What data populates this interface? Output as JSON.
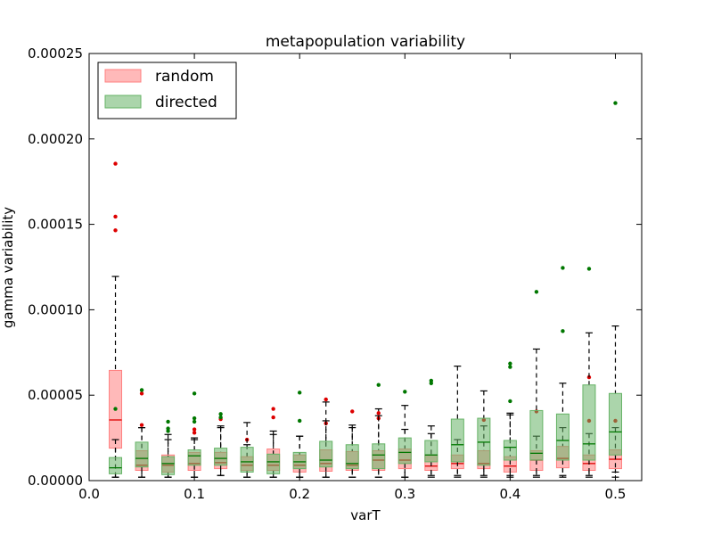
{
  "chart_data": {
    "type": "boxplot",
    "title": "metapopulation variability",
    "xlabel": "varT",
    "ylabel": "gamma variability",
    "xlim": [
      0.0,
      0.525
    ],
    "ylim": [
      0.0,
      0.00025
    ],
    "xticks": [
      0.0,
      0.1,
      0.2,
      0.3,
      0.4,
      0.5
    ],
    "xtick_labels": [
      "0.0",
      "0.1",
      "0.2",
      "0.3",
      "0.4",
      "0.5"
    ],
    "yticks": [
      0.0,
      5e-05,
      0.0001,
      0.00015,
      0.0002,
      0.00025
    ],
    "ytick_labels": [
      "0.00000",
      "0.00005",
      "0.00010",
      "0.00015",
      "0.00020",
      "0.00025"
    ],
    "legend_position": "top-left",
    "series": [
      {
        "name": "random",
        "fill": "#ff8080",
        "median_color": "#dd0000",
        "flier_color": "#dd0000",
        "boxes": [
          {
            "x": 0.025,
            "lw": 2e-06,
            "q1": 1.9e-05,
            "med": 3.55e-05,
            "q3": 6.45e-05,
            "uw": 0.0001195,
            "fliers": [
              0.0001855,
              0.0001545,
              0.0001465
            ]
          },
          {
            "x": 0.05,
            "lw": 2e-06,
            "q1": 6e-06,
            "med": 9e-06,
            "q3": 1.75e-05,
            "uw": 3.1e-05,
            "fliers": [
              5.1e-05,
              3.25e-05
            ]
          },
          {
            "x": 0.075,
            "lw": 2e-06,
            "q1": 5e-06,
            "med": 9e-06,
            "q3": 1.5e-05,
            "uw": 2.7e-05,
            "fliers": []
          },
          {
            "x": 0.1,
            "lw": 2e-06,
            "q1": 6e-06,
            "med": 1e-05,
            "q3": 1.65e-05,
            "uw": 2.5e-05,
            "fliers": [
              3e-05,
              2.8e-05
            ]
          },
          {
            "x": 0.125,
            "lw": 3e-06,
            "q1": 7e-06,
            "med": 1.05e-05,
            "q3": 1.65e-05,
            "uw": 3.1e-05,
            "fliers": [
              3.6e-05
            ]
          },
          {
            "x": 0.15,
            "lw": 2e-06,
            "q1": 6e-06,
            "med": 9e-06,
            "q3": 1.4e-05,
            "uw": 2.1e-05,
            "fliers": [
              2.4e-05
            ]
          },
          {
            "x": 0.175,
            "lw": 2e-06,
            "q1": 6e-06,
            "med": 9e-06,
            "q3": 1.85e-05,
            "uw": 2.9e-05,
            "fliers": [
              4.2e-05,
              3.7e-05
            ]
          },
          {
            "x": 0.2,
            "lw": 2e-06,
            "q1": 5e-06,
            "med": 9e-06,
            "q3": 1.5e-05,
            "uw": 2.6e-05,
            "fliers": []
          },
          {
            "x": 0.225,
            "lw": 2e-06,
            "q1": 5.5e-06,
            "med": 1e-05,
            "q3": 1.8e-05,
            "uw": 4.6e-05,
            "fliers": [
              4.75e-05,
              3.35e-05
            ]
          },
          {
            "x": 0.25,
            "lw": 2e-06,
            "q1": 6e-06,
            "med": 9e-06,
            "q3": 1.7e-05,
            "uw": 3.25e-05,
            "fliers": [
              4.05e-05
            ]
          },
          {
            "x": 0.275,
            "lw": 2e-06,
            "q1": 6e-06,
            "med": 1.2e-05,
            "q3": 1.75e-05,
            "uw": 4.2e-05,
            "fliers": [
              3.95e-05,
              3.65e-05
            ]
          },
          {
            "x": 0.3,
            "lw": 2e-06,
            "q1": 7e-06,
            "med": 1.2e-05,
            "q3": 1.85e-05,
            "uw": 3e-05,
            "fliers": []
          },
          {
            "x": 0.325,
            "lw": 2e-06,
            "q1": 6e-06,
            "med": 8.5e-06,
            "q3": 1.5e-05,
            "uw": 2.75e-05,
            "fliers": []
          },
          {
            "x": 0.35,
            "lw": 2e-06,
            "q1": 7e-06,
            "med": 1e-05,
            "q3": 1.5e-05,
            "uw": 2.4e-05,
            "fliers": []
          },
          {
            "x": 0.375,
            "lw": 2e-06,
            "q1": 7e-06,
            "med": 1e-05,
            "q3": 1.75e-05,
            "uw": 3.2e-05,
            "fliers": [
              3.55e-05
            ]
          },
          {
            "x": 0.4,
            "lw": 2e-06,
            "q1": 5e-06,
            "med": 8.5e-06,
            "q3": 1.4e-05,
            "uw": 3.85e-05,
            "fliers": []
          },
          {
            "x": 0.425,
            "lw": 2e-06,
            "q1": 6e-06,
            "med": 1.2e-05,
            "q3": 1.75e-05,
            "uw": 2.6e-05,
            "fliers": [
              4.05e-05
            ]
          },
          {
            "x": 0.45,
            "lw": 2e-06,
            "q1": 7.5e-06,
            "med": 1.3e-05,
            "q3": 2e-05,
            "uw": 3.1e-05,
            "fliers": []
          },
          {
            "x": 0.475,
            "lw": 2e-06,
            "q1": 6e-06,
            "med": 1e-05,
            "q3": 1.5e-05,
            "uw": 2.75e-05,
            "fliers": [
              6.05e-05,
              3.5e-05
            ]
          },
          {
            "x": 0.5,
            "lw": 2e-06,
            "q1": 7e-06,
            "med": 1.25e-05,
            "q3": 1.8e-05,
            "uw": 3.1e-05,
            "fliers": [
              3.5e-05
            ]
          }
        ]
      },
      {
        "name": "directed",
        "fill": "#66b366",
        "median_color": "#007700",
        "flier_color": "#007700",
        "boxes": [
          {
            "x": 0.025,
            "lw": 2e-06,
            "q1": 4e-06,
            "med": 7.5e-06,
            "q3": 1.35e-05,
            "uw": 2.4e-05,
            "fliers": [
              4.2e-05
            ]
          },
          {
            "x": 0.05,
            "lw": 2e-06,
            "q1": 8e-06,
            "med": 1.3e-05,
            "q3": 2.25e-05,
            "uw": 3.1e-05,
            "fliers": [
              5.3e-05
            ]
          },
          {
            "x": 0.075,
            "lw": 2e-06,
            "q1": 3.5e-06,
            "med": 1e-05,
            "q3": 1.4e-05,
            "uw": 2.4e-05,
            "fliers": [
              3.45e-05,
              3.05e-05,
              2.9e-05
            ]
          },
          {
            "x": 0.1,
            "lw": 2e-06,
            "q1": 9e-06,
            "med": 1.45e-05,
            "q3": 1.8e-05,
            "uw": 2.4e-05,
            "fliers": [
              5.1e-05,
              3.65e-05,
              3.45e-05
            ]
          },
          {
            "x": 0.125,
            "lw": 3e-06,
            "q1": 9e-06,
            "med": 1.3e-05,
            "q3": 1.9e-05,
            "uw": 3.2e-05,
            "fliers": [
              3.9e-05,
              3.7e-05
            ]
          },
          {
            "x": 0.15,
            "lw": 2e-06,
            "q1": 5e-06,
            "med": 1.1e-05,
            "q3": 1.95e-05,
            "uw": 3.4e-05,
            "fliers": []
          },
          {
            "x": 0.175,
            "lw": 2e-06,
            "q1": 4e-06,
            "med": 1.1e-05,
            "q3": 1.55e-05,
            "uw": 2.7e-05,
            "fliers": []
          },
          {
            "x": 0.2,
            "lw": 2e-06,
            "q1": 7e-06,
            "med": 1.1e-05,
            "q3": 1.65e-05,
            "uw": 2.6e-05,
            "fliers": [
              5.15e-05,
              3.5e-05
            ]
          },
          {
            "x": 0.225,
            "lw": 2e-06,
            "q1": 8e-06,
            "med": 1.2e-05,
            "q3": 2.3e-05,
            "uw": 3.5e-05,
            "fliers": []
          },
          {
            "x": 0.25,
            "lw": 2e-06,
            "q1": 7e-06,
            "med": 1e-05,
            "q3": 2.1e-05,
            "uw": 3.1e-05,
            "fliers": []
          },
          {
            "x": 0.275,
            "lw": 2e-06,
            "q1": 7e-06,
            "med": 1.5e-05,
            "q3": 2.15e-05,
            "uw": 3.8e-05,
            "fliers": [
              5.6e-05
            ]
          },
          {
            "x": 0.3,
            "lw": 2e-06,
            "q1": 1e-05,
            "med": 1.65e-05,
            "q3": 2.5e-05,
            "uw": 4.4e-05,
            "fliers": [
              5.2e-05
            ]
          },
          {
            "x": 0.325,
            "lw": 3e-06,
            "q1": 1.1e-05,
            "med": 1.5e-05,
            "q3": 2.35e-05,
            "uw": 3.2e-05,
            "fliers": [
              5.85e-05,
              5.7e-05
            ]
          },
          {
            "x": 0.35,
            "lw": 3e-06,
            "q1": 1.1e-05,
            "med": 2.1e-05,
            "q3": 3.6e-05,
            "uw": 6.7e-05,
            "fliers": []
          },
          {
            "x": 0.375,
            "lw": 3e-06,
            "q1": 9e-06,
            "med": 2.25e-05,
            "q3": 3.65e-05,
            "uw": 5.25e-05,
            "fliers": []
          },
          {
            "x": 0.4,
            "lw": 3e-06,
            "q1": 1.2e-05,
            "med": 1.95e-05,
            "q3": 2.35e-05,
            "uw": 3.95e-05,
            "fliers": [
              6.85e-05,
              6.65e-05,
              4.65e-05
            ]
          },
          {
            "x": 0.425,
            "lw": 3e-06,
            "q1": 1.2e-05,
            "med": 1.6e-05,
            "q3": 4.1e-05,
            "uw": 7.7e-05,
            "fliers": [
              0.0001105
            ]
          },
          {
            "x": 0.45,
            "lw": 3e-06,
            "q1": 1.2e-05,
            "med": 2.35e-05,
            "q3": 3.9e-05,
            "uw": 5.7e-05,
            "fliers": [
              0.0001245,
              8.75e-05
            ]
          },
          {
            "x": 0.475,
            "lw": 3e-06,
            "q1": 1.2e-05,
            "med": 2.15e-05,
            "q3": 5.6e-05,
            "uw": 8.65e-05,
            "fliers": [
              0.000124
            ]
          },
          {
            "x": 0.5,
            "lw": 5e-06,
            "q1": 1.5e-05,
            "med": 2.85e-05,
            "q3": 5.1e-05,
            "uw": 9.05e-05,
            "fliers": [
              0.000221
            ]
          }
        ]
      }
    ]
  }
}
